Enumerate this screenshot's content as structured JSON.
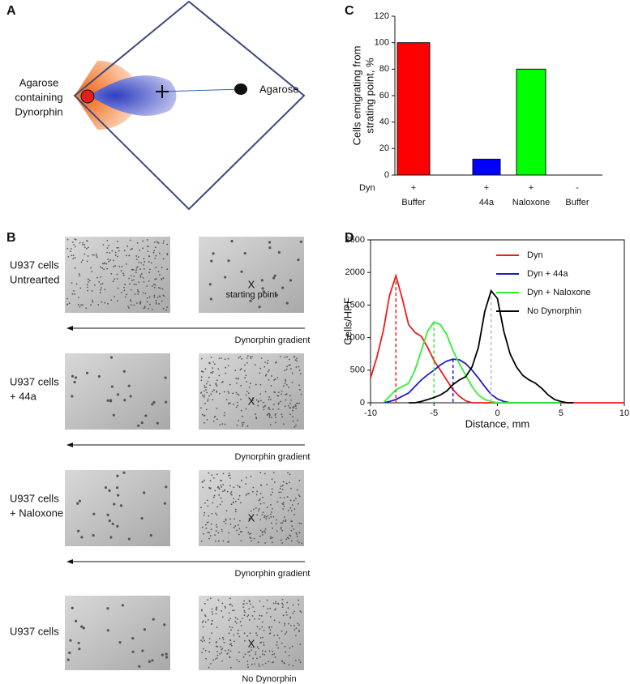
{
  "panel_a": {
    "letter": "A",
    "left_label": [
      "Agarose",
      "containing",
      "Dynorphin"
    ],
    "right_label": "Agarose"
  },
  "panel_b": {
    "letter": "B",
    "rows": [
      {
        "label": [
          "U937 cells",
          "Untrearted"
        ],
        "marker": "X",
        "note": "starting point",
        "gradient_label": "Dynorphin gradient"
      },
      {
        "label": [
          "U937 cells",
          "+ 44a"
        ],
        "marker": "X",
        "gradient_label": "Dynorphin gradient"
      },
      {
        "label": [
          "U937 cells",
          "+ Naloxone"
        ],
        "marker": "X",
        "gradient_label": "Dynorphin gradient"
      },
      {
        "label": [
          "U937 cells"
        ],
        "marker": "X",
        "caption": "No Dynorphin"
      }
    ]
  },
  "chart_data": [
    {
      "type": "bar",
      "panel": "C",
      "y_label": [
        "Cells emigrating from",
        "strating point, %"
      ],
      "row_label": "Dyn",
      "categories": [
        "+",
        "+",
        "+",
        "-"
      ],
      "category_details": [
        "Buffer",
        "44a",
        "Naloxone",
        "Buffer"
      ],
      "values": [
        100,
        12,
        80,
        0
      ],
      "colors": [
        "#ff0000",
        "#0000ff",
        "#00ff00",
        "#ffffff"
      ],
      "ylim": [
        0,
        120
      ],
      "yticks": [
        0,
        20,
        40,
        60,
        80,
        100,
        120
      ]
    },
    {
      "type": "line",
      "panel": "D",
      "x_label": "Distance, mm",
      "y_label": "Cells/HPF",
      "legend": "upper right",
      "x": [
        -10,
        -9.5,
        -9,
        -8.5,
        -8,
        -7.5,
        -7,
        -6.5,
        -6,
        -5.5,
        -5,
        -4.5,
        -4,
        -3.5,
        -3,
        -2.5,
        -2,
        -1.5,
        -1,
        -0.5,
        0,
        0.5,
        1,
        1.5,
        2,
        2.5,
        3,
        3.5,
        4,
        4.5,
        5,
        5.5,
        6,
        6.5,
        7,
        7.5,
        8,
        8.5,
        9,
        9.5,
        10
      ],
      "xlim": [
        -10,
        10
      ],
      "xticks": [
        -10,
        -5,
        0,
        5,
        10
      ],
      "ylim": [
        0,
        2500
      ],
      "yticks": [
        0,
        500,
        1000,
        1500,
        2000,
        2500
      ],
      "series": [
        {
          "name": "Dyn",
          "color": "#ee1c1c",
          "drop_line_color": "#ee1c1c",
          "values": [
            380,
            700,
            1100,
            1650,
            1950,
            1600,
            1200,
            1080,
            1020,
            850,
            650,
            500,
            350,
            200,
            100,
            30,
            0,
            0,
            0,
            0,
            0,
            0,
            0,
            0,
            0,
            0,
            0,
            0,
            0,
            0,
            0,
            0,
            0,
            0,
            0,
            0,
            0,
            0,
            0,
            0,
            0
          ]
        },
        {
          "name": "Dyn + 44a",
          "color": "#1c1ccc",
          "drop_line_color": "#1c1ccc",
          "values": [
            null,
            null,
            0,
            20,
            50,
            100,
            150,
            250,
            350,
            430,
            500,
            580,
            640,
            670,
            660,
            600,
            500,
            380,
            250,
            130,
            60,
            20,
            0,
            0,
            0,
            0,
            0,
            0,
            0,
            0,
            0,
            null,
            null,
            null,
            null,
            null,
            null,
            null,
            null,
            null,
            null
          ]
        },
        {
          "name": "Dyn + Naloxone",
          "color": "#33ee33",
          "drop_line_color": "#33ee33",
          "values": [
            null,
            null,
            0,
            100,
            200,
            250,
            300,
            500,
            800,
            1100,
            1240,
            1200,
            1050,
            800,
            600,
            420,
            250,
            120,
            50,
            20,
            0,
            0,
            0,
            0,
            0,
            0,
            0,
            0,
            0,
            0,
            0,
            null,
            null,
            null,
            null,
            null,
            null,
            null,
            null,
            null,
            null
          ]
        },
        {
          "name": "No Dynorphin",
          "color": "#000000",
          "drop_line_color": "#bbbbbb",
          "values": [
            null,
            null,
            null,
            null,
            null,
            null,
            0,
            0,
            20,
            50,
            80,
            120,
            180,
            280,
            350,
            400,
            550,
            850,
            1400,
            1720,
            1600,
            1100,
            750,
            550,
            420,
            350,
            300,
            220,
            120,
            50,
            20,
            0,
            0,
            null,
            null,
            null,
            null,
            null,
            null,
            null,
            null
          ]
        }
      ]
    }
  ]
}
